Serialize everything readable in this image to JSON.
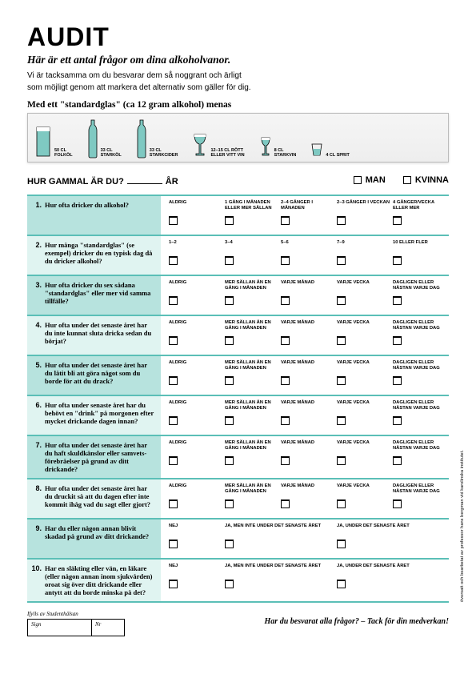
{
  "title": "AUDIT",
  "subtitle": "Här är ett antal frågor om dina alkoholvanor.",
  "intro_l1": "Vi är tacksamma om du besvarar dem så noggrant och ärligt",
  "intro_l2": "som möjligt genom att markera det alternativ som gäller för dig.",
  "stdglas": "Med ett \"standardglas\" (ca 12 gram alkohol) menas",
  "glasses": [
    {
      "l1": "50 CL",
      "l2": "FOLKÖL"
    },
    {
      "l1": "33 CL",
      "l2": "STARKÖL"
    },
    {
      "l1": "33 CL",
      "l2": "STARKCIDER"
    },
    {
      "l1": "12–15 CL RÖTT",
      "l2": "ELLER VITT VIN"
    },
    {
      "l1": "8 CL",
      "l2": "STARKVIN"
    },
    {
      "l1": "4 CL SPRIT",
      "l2": ""
    }
  ],
  "age_q": "HUR GAMMAL ÄR DU?",
  "age_unit": "ÅR",
  "gender_m": "MAN",
  "gender_k": "KVINNA",
  "scale_freq": [
    "ALDRIG",
    "1 GÅNG I MÅNADEN ELLER MER SÄLLAN",
    "2–4 GÅNGER I MÅNADEN",
    "2–3 GÅNGER I VECKAN",
    "4 GÅNGER/VECKA ELLER MER"
  ],
  "scale_qty": [
    "1–2",
    "3–4",
    "5–6",
    "7–9",
    "10 ELLER FLER"
  ],
  "scale_often": [
    "ALDRIG",
    "MER SÄLLAN ÄN EN GÅNG I MÅNADEN",
    "VARJE MÅNAD",
    "VARJE VECKA",
    "DAGLIGEN ELLER NÄSTAN VARJE DAG"
  ],
  "scale_harm": [
    "NEJ",
    "JA, MEN INTE UNDER DET SENASTE ÅRET",
    "JA, UNDER DET SENASTE ÅRET"
  ],
  "questions": [
    {
      "n": "1.",
      "t": "Hur ofta dricker du alkohol?",
      "scale": "freq"
    },
    {
      "n": "2.",
      "t": "Hur många \"standardglas\" (se exempel) dricker du en typisk dag då du dricker alkohol?",
      "scale": "qty"
    },
    {
      "n": "3.",
      "t": "Hur ofta dricker du sex sådana \"standardglas\" eller mer vid samma tillfälle?",
      "scale": "often"
    },
    {
      "n": "4.",
      "t": "Hur ofta under det senaste året har du inte kunnat sluta dricka sedan du börjat?",
      "scale": "often"
    },
    {
      "n": "5.",
      "t": "Hur ofta under det senaste året har du låtit bli att göra något som du borde för att du drack?",
      "scale": "often"
    },
    {
      "n": "6.",
      "t": "Hur ofta under senaste året har du behövt en \"drink\" på morgonen efter mycket drickande dagen innan?",
      "scale": "often"
    },
    {
      "n": "7.",
      "t": "Hur ofta under det senaste året har du haft skuldkänslor eller samvets­förebråelser på grund av ditt drickande?",
      "scale": "often"
    },
    {
      "n": "8.",
      "t": "Hur ofta under det senaste året har du druckit så att du dagen efter inte kommit ihåg vad du sagt eller gjort?",
      "scale": "often"
    },
    {
      "n": "9.",
      "t": "Har du eller någon annan blivit skadad  på grund av ditt drickande?",
      "scale": "harm"
    },
    {
      "n": "10.",
      "t": "Har en släkting eller vän, en läkare (eller någon annan inom sjukvården) oroat sig över ditt drickande eller antytt att du borde minska på det?",
      "scale": "harm"
    }
  ],
  "fill_by": "Ifylls av Studenthälsan",
  "sign": "Sign",
  "nr": "Nr",
  "thanks": "Har du besvarat alla frågor? – Tack för din medverkan!",
  "sidenote": "översatt och bearbetat av professor hans bergman vid karolinska institutet.",
  "colors": {
    "teal_dark": "#5bbfb7",
    "teal_mid": "#b7e3de",
    "teal_light": "#e0f4f1",
    "fill": "#7fc9c2"
  }
}
